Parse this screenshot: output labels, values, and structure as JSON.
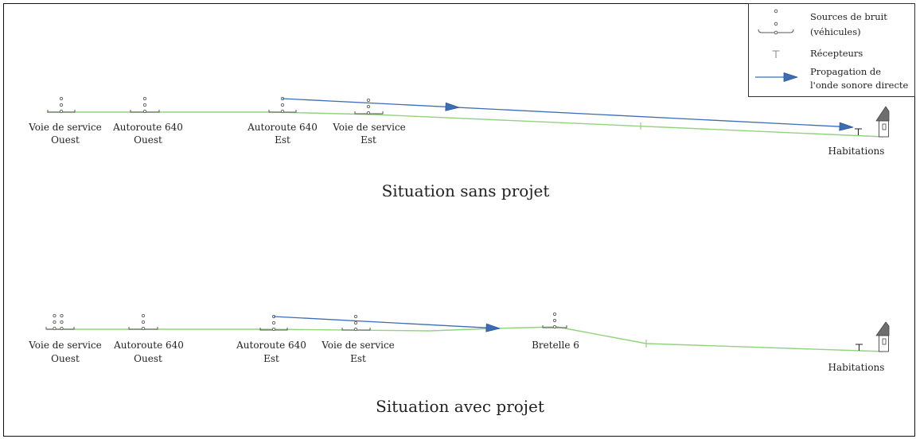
{
  "legend": {
    "sources": {
      "icon": "noise-source-icon",
      "line1": "Sources de bruit",
      "line2": "(véhicules)"
    },
    "receptors": {
      "icon": "receptor-icon",
      "label": "Récepteurs"
    },
    "propagation": {
      "icon": "arrow-icon",
      "line1": "Propagation de",
      "line2": "l'onde sonore directe"
    }
  },
  "scenarios": [
    {
      "title": "Situation sans projet",
      "sources": [
        {
          "line1": "Voie de service",
          "line2": "Ouest"
        },
        {
          "line1": "Autoroute 640",
          "line2": "Ouest"
        },
        {
          "line1": "Autoroute 640",
          "line2": "Est"
        },
        {
          "line1": "Voie de service",
          "line2": "Est"
        }
      ],
      "receptor_label": "Habitations"
    },
    {
      "title": "Situation avec projet",
      "sources": [
        {
          "line1": "Voie de service",
          "line2": "Ouest"
        },
        {
          "line1": "Autoroute 640",
          "line2": "Ouest"
        },
        {
          "line1": "Autoroute 640",
          "line2": "Est"
        },
        {
          "line1": "Voie de service",
          "line2": "Est"
        },
        {
          "line1": "Bretelle 6"
        }
      ],
      "receptor_label": "Habitations"
    }
  ],
  "colors": {
    "ground": "#93d37f",
    "propagation_arrow": "#3d6db3",
    "source_marker": "#555555",
    "text": "#222222"
  }
}
